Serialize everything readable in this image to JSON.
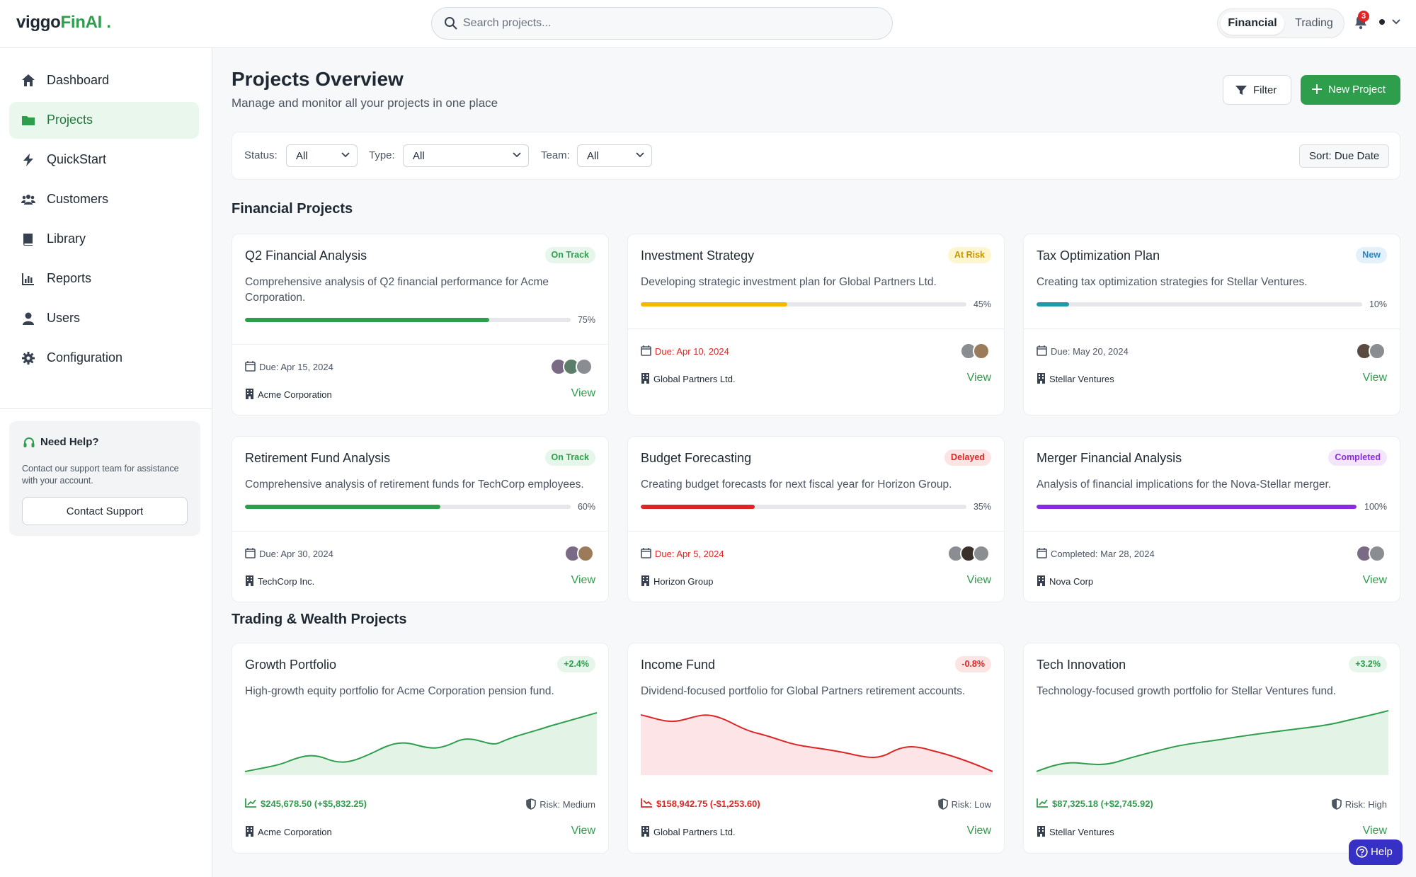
{
  "app": {
    "logo_a": "viggo",
    "logo_b": "FinAI",
    "logo_dot": " ."
  },
  "search": {
    "placeholder": "Search projects..."
  },
  "modes": [
    "Financial",
    "Trading"
  ],
  "notifications": {
    "count": "3"
  },
  "sidebar": {
    "items": [
      {
        "label": "Dashboard",
        "icon": "home-icon"
      },
      {
        "label": "Projects",
        "icon": "folder-icon",
        "active": true
      },
      {
        "label": "QuickStart",
        "icon": "bolt-icon"
      },
      {
        "label": "Customers",
        "icon": "users-group-icon"
      },
      {
        "label": "Library",
        "icon": "book-icon"
      },
      {
        "label": "Reports",
        "icon": "bar-chart-icon"
      },
      {
        "label": "Users",
        "icon": "user-icon"
      },
      {
        "label": "Configuration",
        "icon": "gear-icon"
      }
    ],
    "help": {
      "title": "Need Help?",
      "desc": "Contact our support team for assistance with your account.",
      "button": "Contact Support"
    }
  },
  "header": {
    "title": "Projects Overview",
    "subtitle": "Manage and monitor all your projects in one place",
    "filter_label": "Filter",
    "new_label": "New Project"
  },
  "filters": {
    "status_label": "Status:",
    "status_value": "All",
    "type_label": "Type:",
    "type_value": "All",
    "team_label": "Team:",
    "team_value": "All",
    "sort_label": "Sort: Due Date"
  },
  "sections": {
    "financial": "Financial Projects",
    "trading": "Trading & Wealth Projects"
  },
  "colors": {
    "brand": "#2e9e4d",
    "danger": "#dc2626",
    "warning": "#f5b800",
    "teal": "#1e9aa8",
    "purple": "#8a2be2"
  },
  "financial_projects": [
    {
      "title": "Q2 Financial Analysis",
      "status": "On Track",
      "desc": "Comprehensive analysis of Q2 financial performance for Acme Corporation.",
      "progress": 75,
      "pct": "75%",
      "due": "Due: Apr 15, 2024",
      "client": "Acme Corporation",
      "view": "View"
    },
    {
      "title": "Investment Strategy",
      "status": "At Risk",
      "desc": "Developing strategic investment plan for Global Partners Ltd.",
      "progress": 45,
      "pct": "45%",
      "due": "Due: Apr 10, 2024",
      "client": "Global Partners Ltd.",
      "view": "View"
    },
    {
      "title": "Tax Optimization Plan",
      "status": "New",
      "desc": "Creating tax optimization strategies for Stellar Ventures.",
      "progress": 10,
      "pct": "10%",
      "due": "Due: May 20, 2024",
      "client": "Stellar Ventures",
      "view": "View"
    },
    {
      "title": "Retirement Fund Analysis",
      "status": "On Track",
      "desc": "Comprehensive analysis of retirement funds for TechCorp employees.",
      "progress": 60,
      "pct": "60%",
      "due": "Due: Apr 30, 2024",
      "client": "TechCorp Inc.",
      "view": "View"
    },
    {
      "title": "Budget Forecasting",
      "status": "Delayed",
      "desc": "Creating budget forecasts for next fiscal year for Horizon Group.",
      "progress": 35,
      "pct": "35%",
      "due": "Due: Apr 5, 2024",
      "client": "Horizon Group",
      "view": "View"
    },
    {
      "title": "Merger Financial Analysis",
      "status": "Completed",
      "desc": "Analysis of financial implications for the Nova-Stellar merger.",
      "progress": 100,
      "pct": "100%",
      "due": "Completed: Mar 28, 2024",
      "client": "Nova Corp",
      "view": "View"
    }
  ],
  "trading_projects": [
    {
      "title": "Growth Portfolio",
      "change": "+2.4%",
      "desc": "High-growth equity portfolio for Acme Corporation pension fund.",
      "value": "$245,678.50 (+$5,832.25)",
      "risk": "Risk: Medium",
      "client": "Acme Corporation",
      "view": "View"
    },
    {
      "title": "Income Fund",
      "change": "-0.8%",
      "desc": "Dividend-focused portfolio for Global Partners retirement accounts.",
      "value": "$158,942.75 (-$1,253.60)",
      "risk": "Risk: Low",
      "client": "Global Partners Ltd.",
      "view": "View"
    },
    {
      "title": "Tech Innovation",
      "change": "+3.2%",
      "desc": "Technology-focused growth portfolio for Stellar Ventures fund.",
      "value": "$87,325.18 (+$2,745.92)",
      "risk": "Risk: High",
      "client": "Stellar Ventures",
      "view": "View"
    }
  ],
  "help_fab": "Help"
}
